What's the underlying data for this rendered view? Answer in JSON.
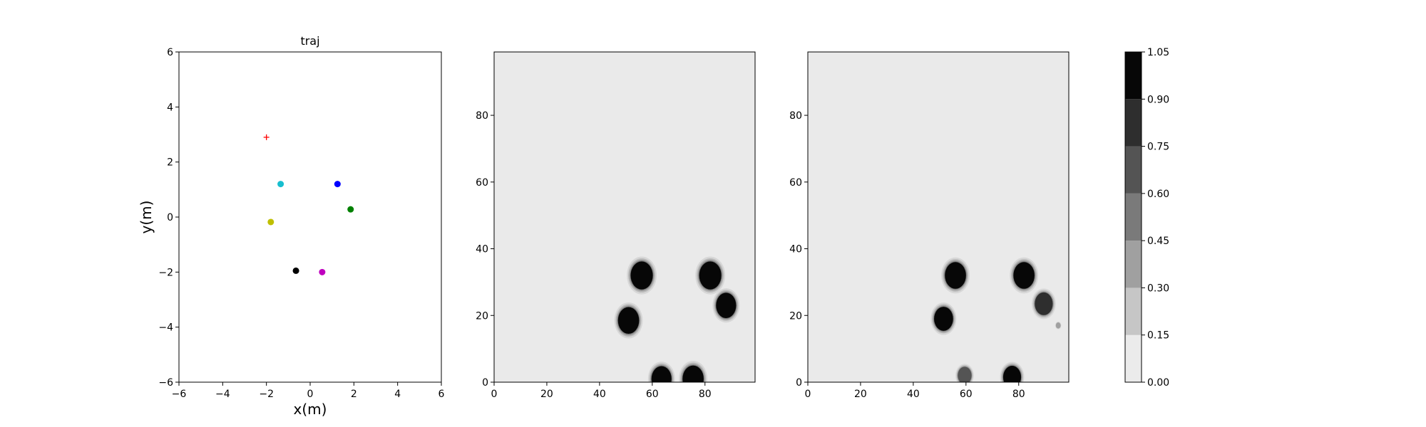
{
  "colors": {
    "background": "#eaeaea",
    "axes": "#000000",
    "scatter_red": "#ff0000",
    "scatter_cyan": "#17becf",
    "scatter_blue": "#0000ff",
    "scatter_green": "#008000",
    "scatter_yellow": "#bfbf00",
    "scatter_black": "#000000",
    "scatter_magenta": "#bf00bf"
  },
  "chart_data": [
    {
      "type": "scatter",
      "title": "traj",
      "xlabel": "x(m)",
      "ylabel": "y(m)",
      "xlim": [
        -6,
        6
      ],
      "ylim": [
        -6,
        6
      ],
      "xticks": [
        "−6",
        "−4",
        "−2",
        "0",
        "2",
        "4",
        "6"
      ],
      "yticks": [
        "−6",
        "−4",
        "−2",
        "0",
        "2",
        "4",
        "6"
      ],
      "grid": false,
      "points": [
        {
          "x": -2.0,
          "y": 2.9,
          "color": "#ff0000",
          "marker": "plus"
        },
        {
          "x": -1.35,
          "y": 1.2,
          "color": "#17becf",
          "marker": "circle"
        },
        {
          "x": 1.25,
          "y": 1.2,
          "color": "#0000ff",
          "marker": "circle"
        },
        {
          "x": 1.85,
          "y": 0.28,
          "color": "#008000",
          "marker": "circle"
        },
        {
          "x": -1.8,
          "y": -0.18,
          "color": "#bfbf00",
          "marker": "circle"
        },
        {
          "x": -0.65,
          "y": -1.95,
          "color": "#000000",
          "marker": "circle"
        },
        {
          "x": 0.55,
          "y": -2.0,
          "color": "#bf00bf",
          "marker": "circle"
        }
      ]
    },
    {
      "type": "heatmap",
      "title": "",
      "xlim": [
        0,
        99
      ],
      "ylim": [
        0,
        99
      ],
      "xticks": [
        "0",
        "20",
        "40",
        "60",
        "80"
      ],
      "yticks": [
        "0",
        "20",
        "40",
        "60",
        "80"
      ],
      "blobs": [
        {
          "x": 56,
          "y": 32,
          "r": 4.2,
          "level": 1.0
        },
        {
          "x": 82,
          "y": 32,
          "r": 4.2,
          "level": 1.0
        },
        {
          "x": 51,
          "y": 18.5,
          "r": 4.0,
          "level": 1.0
        },
        {
          "x": 88,
          "y": 23,
          "r": 3.8,
          "level": 1.0
        },
        {
          "x": 63.5,
          "y": 1,
          "r": 3.8,
          "level": 1.0
        },
        {
          "x": 75.5,
          "y": 1,
          "r": 4.0,
          "level": 1.0
        }
      ]
    },
    {
      "type": "heatmap",
      "title": "",
      "xlim": [
        0,
        99
      ],
      "ylim": [
        0,
        99
      ],
      "xticks": [
        "0",
        "20",
        "40",
        "60",
        "80"
      ],
      "yticks": [
        "0",
        "20",
        "40",
        "60",
        "80"
      ],
      "blobs": [
        {
          "x": 56,
          "y": 32,
          "r": 4.0,
          "level": 1.0
        },
        {
          "x": 82,
          "y": 32,
          "r": 4.0,
          "level": 1.0
        },
        {
          "x": 51.5,
          "y": 19,
          "r": 3.6,
          "level": 1.0
        },
        {
          "x": 89.5,
          "y": 23.5,
          "r": 3.4,
          "level": 0.8
        },
        {
          "x": 59.5,
          "y": 2,
          "r": 2.6,
          "level": 0.7
        },
        {
          "x": 77.5,
          "y": 1.5,
          "r": 3.4,
          "level": 0.95
        },
        {
          "x": 95,
          "y": 17,
          "r": 0.9,
          "level": 0.25
        }
      ]
    },
    {
      "type": "colorbar",
      "ticks": [
        "0.00",
        "0.15",
        "0.30",
        "0.45",
        "0.60",
        "0.75",
        "0.90",
        "1.05"
      ],
      "levels": [
        0.0,
        0.15,
        0.3,
        0.45,
        0.6,
        0.75,
        0.9,
        1.05
      ],
      "band_colors": [
        "#ebebeb",
        "#c6c6c6",
        "#a0a0a0",
        "#7a7a7a",
        "#545454",
        "#2e2e2e",
        "#070707"
      ]
    }
  ]
}
